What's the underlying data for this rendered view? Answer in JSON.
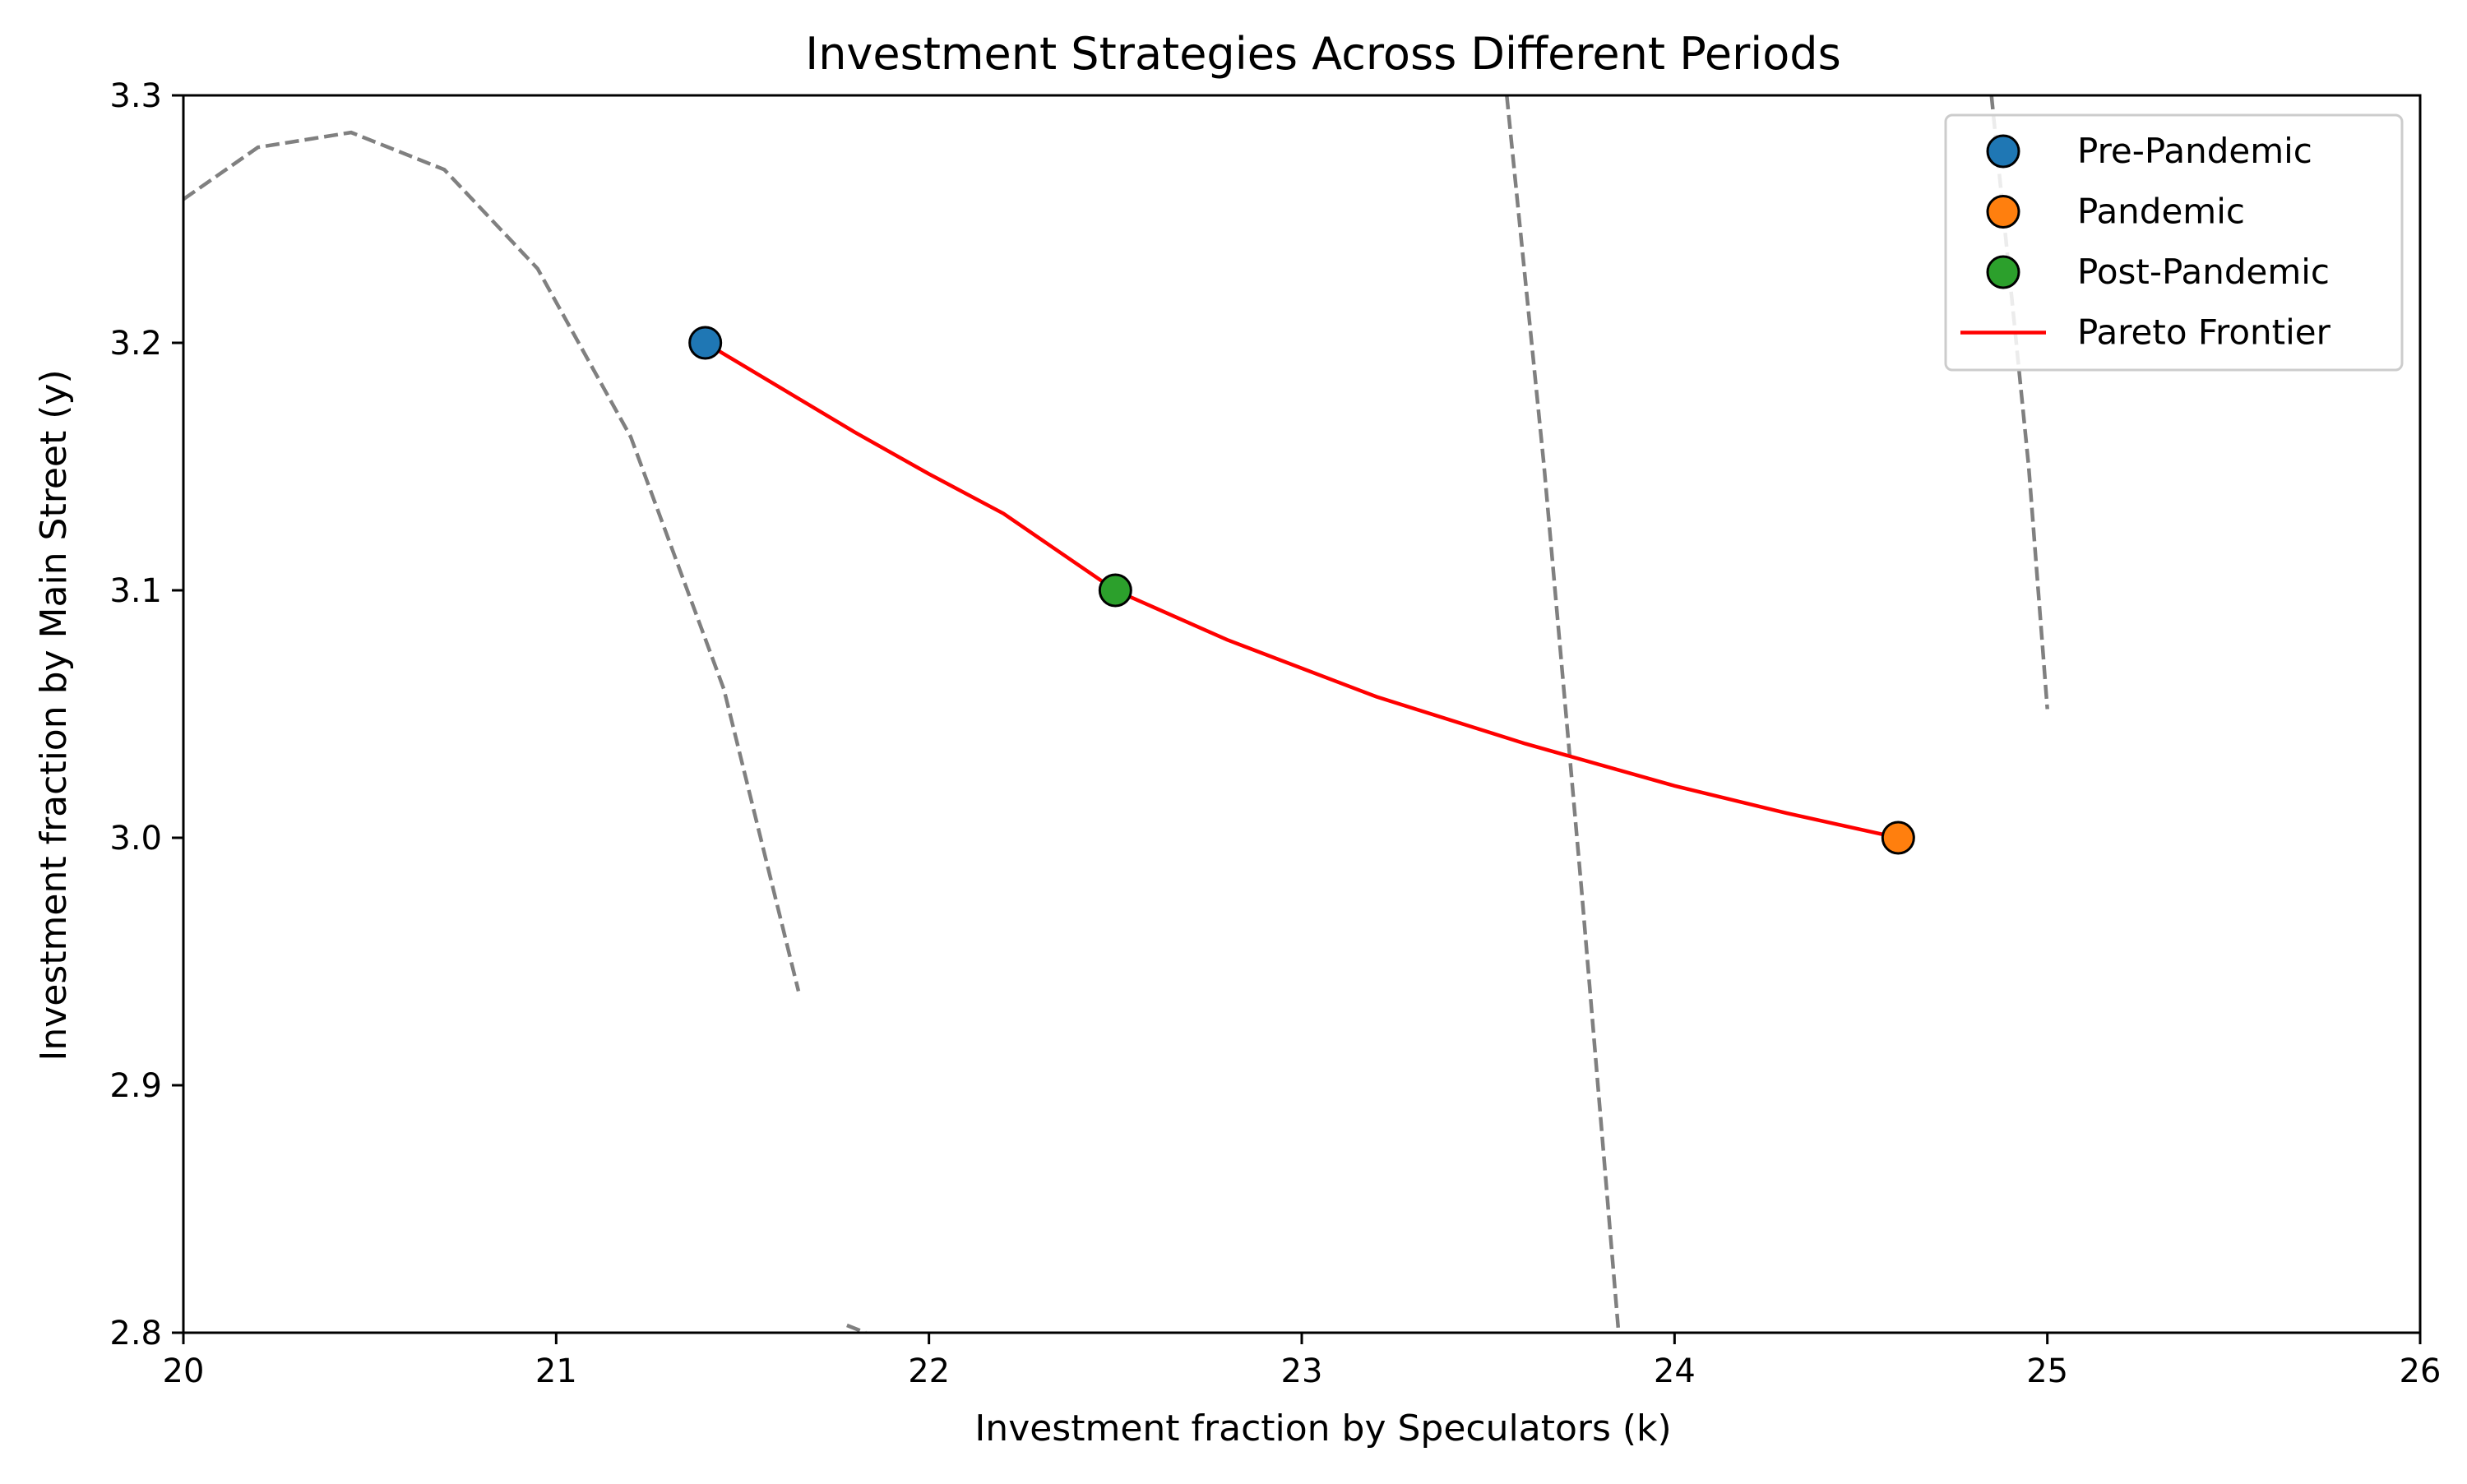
{
  "chart_data": {
    "type": "scatter",
    "title": "Investment Strategies Across Different Periods",
    "xlabel": "Investment fraction by Speculators (k)",
    "ylabel": "Investment fraction by Main Street (y)",
    "xlim": [
      20,
      26
    ],
    "ylim": [
      2.8,
      3.3
    ],
    "x_ticks": [
      20,
      21,
      22,
      23,
      24,
      25,
      26
    ],
    "y_ticks": [
      2.8,
      2.9,
      3.0,
      3.1,
      3.2,
      3.3
    ],
    "grid": false,
    "legend_position": "top-right",
    "points": [
      {
        "name": "Pre-Pandemic",
        "x": 21.4,
        "y": 3.2,
        "color": "#1f77b4"
      },
      {
        "name": "Pandemic",
        "x": 24.6,
        "y": 3.0,
        "color": "#ff7f0e"
      },
      {
        "name": "Post-Pandemic",
        "x": 22.5,
        "y": 3.1,
        "color": "#2ca02c"
      }
    ],
    "frontier": {
      "name": "Pareto Frontier",
      "color": "#ff0000",
      "x": [
        21.4,
        21.6,
        21.8,
        22.0,
        22.2,
        22.5,
        22.8,
        23.2,
        23.6,
        24.0,
        24.3,
        24.6
      ],
      "y": [
        3.2,
        3.182,
        3.164,
        3.147,
        3.131,
        3.1,
        3.08,
        3.057,
        3.038,
        3.021,
        3.01,
        3.0
      ]
    },
    "contours": {
      "color": "#808080",
      "lines": [
        {
          "x": [
            20.0,
            20.2,
            20.45,
            20.7,
            20.95,
            21.2,
            21.45,
            21.65
          ],
          "y": [
            3.258,
            3.279,
            3.285,
            3.27,
            3.23,
            3.162,
            3.06,
            2.938
          ]
        },
        {
          "x": [
            23.55,
            23.65,
            23.75,
            23.85
          ],
          "y": [
            3.3,
            3.15,
            2.98,
            2.8
          ]
        },
        {
          "x": [
            24.85,
            24.95,
            25.0
          ],
          "y": [
            3.3,
            3.15,
            3.052
          ]
        },
        {
          "x": [
            21.78,
            21.83
          ],
          "y": [
            2.803,
            2.8
          ]
        }
      ]
    },
    "legend": [
      {
        "label": "Pre-Pandemic",
        "kind": "marker",
        "color": "#1f77b4"
      },
      {
        "label": "Pandemic",
        "kind": "marker",
        "color": "#ff7f0e"
      },
      {
        "label": "Post-Pandemic",
        "kind": "marker",
        "color": "#2ca02c"
      },
      {
        "label": "Pareto Frontier",
        "kind": "line",
        "color": "#ff0000"
      }
    ]
  }
}
